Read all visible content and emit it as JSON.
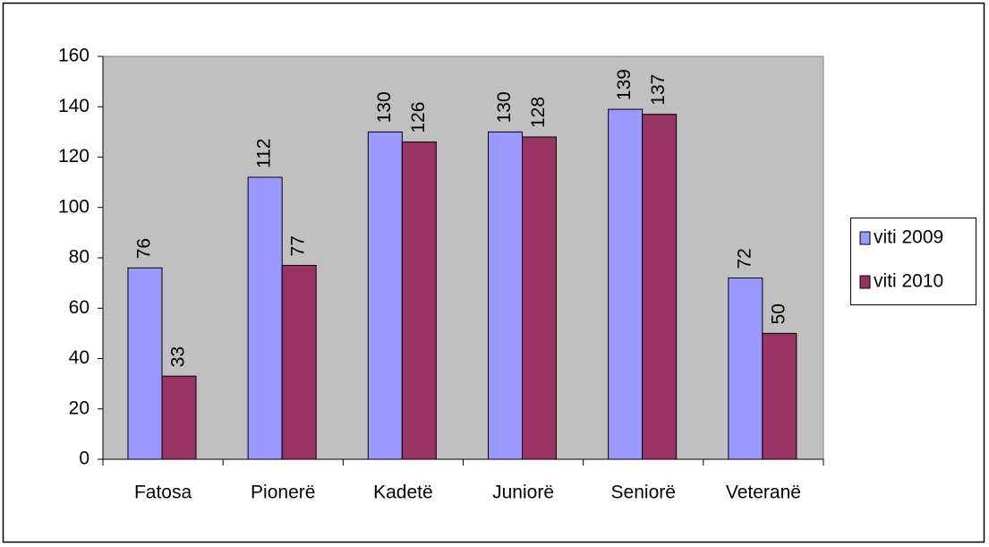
{
  "chart_data": {
    "type": "bar",
    "categories": [
      "Fatosa",
      "Pionerë",
      "Kadetë",
      "Juniorë",
      "Seniorë",
      "Veteranë"
    ],
    "series": [
      {
        "name": "viti 2009",
        "color": "#9999ff",
        "values": [
          76,
          112,
          130,
          130,
          139,
          72
        ]
      },
      {
        "name": "viti 2010",
        "color": "#993366",
        "values": [
          33,
          77,
          126,
          128,
          137,
          50
        ]
      }
    ],
    "ylim": [
      0,
      160
    ],
    "yticks": [
      0,
      20,
      40,
      60,
      80,
      100,
      120,
      140,
      160
    ],
    "grid": false,
    "legend": "right"
  }
}
